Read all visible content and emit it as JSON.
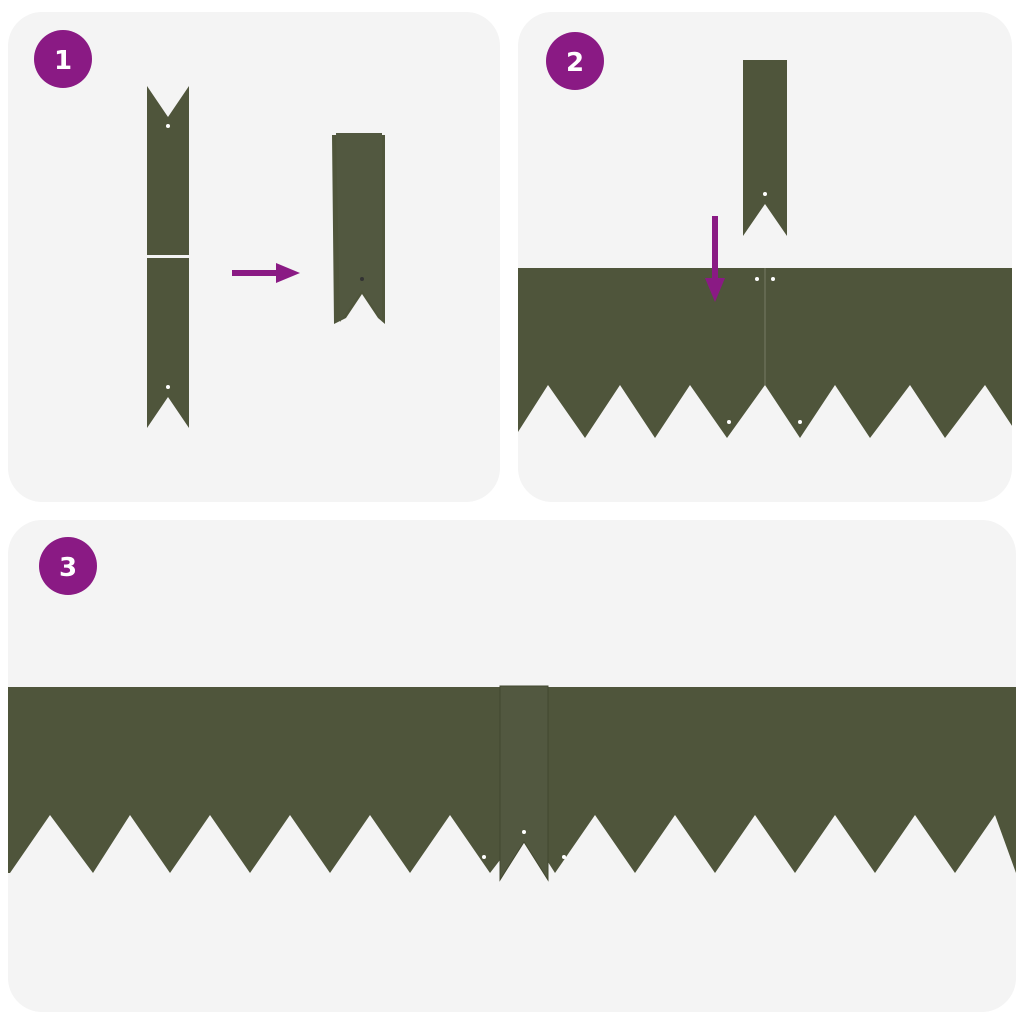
{
  "colors": {
    "panel_background": "#f4f4f4",
    "edging_green": "#4f553b",
    "accent_purple": "#8a1a84"
  },
  "steps": [
    {
      "number": "1",
      "description_icons": [
        "stake-pieces-icon",
        "arrow-right-icon",
        "folded-stake-icon"
      ]
    },
    {
      "number": "2",
      "description_icons": [
        "stake-icon",
        "arrow-down-icon",
        "lawn-edging-icon"
      ]
    },
    {
      "number": "3",
      "description_icons": [
        "assembled-lawn-edging-icon"
      ]
    }
  ]
}
